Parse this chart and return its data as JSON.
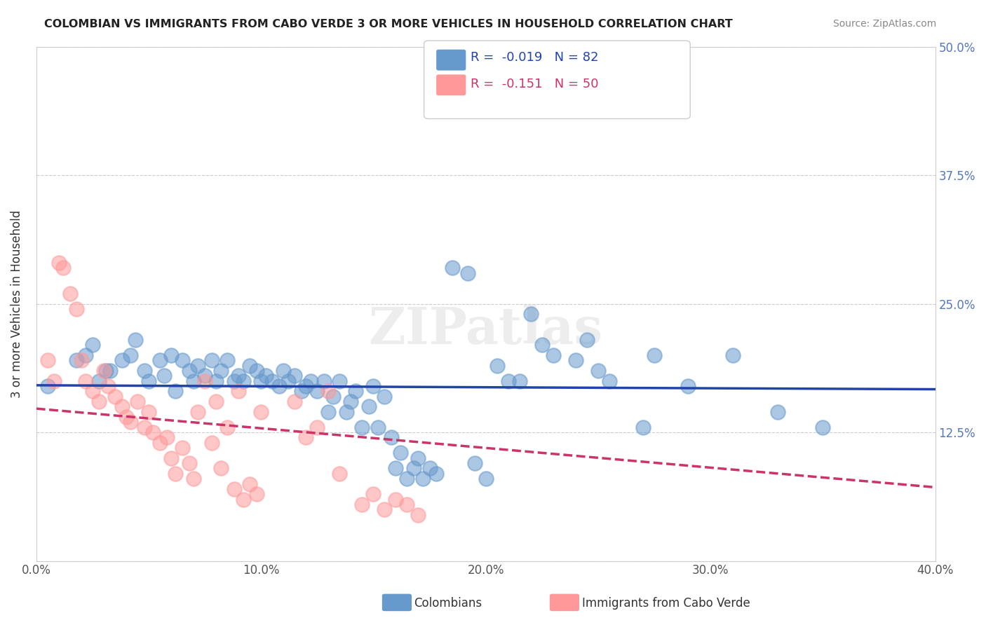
{
  "title": "COLOMBIAN VS IMMIGRANTS FROM CABO VERDE 3 OR MORE VEHICLES IN HOUSEHOLD CORRELATION CHART",
  "source": "Source: ZipAtlas.com",
  "xlabel": "",
  "ylabel": "3 or more Vehicles in Household",
  "xmin": 0.0,
  "xmax": 0.4,
  "ymin": 0.0,
  "ymax": 0.5,
  "xticks": [
    0.0,
    0.1,
    0.2,
    0.3,
    0.4
  ],
  "yticks": [
    0.0,
    0.125,
    0.25,
    0.375,
    0.5
  ],
  "ytick_labels": [
    "",
    "12.5%",
    "25.0%",
    "37.5%",
    "50.0%"
  ],
  "xtick_labels": [
    "0.0%",
    "10.0%",
    "20.0%",
    "30.0%",
    "40.0%"
  ],
  "blue_R": -0.019,
  "blue_N": 82,
  "pink_R": -0.151,
  "pink_N": 50,
  "blue_color": "#6699CC",
  "pink_color": "#FF9999",
  "blue_line_color": "#2244AA",
  "pink_line_color": "#CC3366",
  "legend_blue_label": "Colombians",
  "legend_pink_label": "Immigrants from Cabo Verde",
  "watermark": "ZIPatlas",
  "blue_x": [
    0.031,
    0.005,
    0.018,
    0.022,
    0.025,
    0.028,
    0.033,
    0.038,
    0.042,
    0.044,
    0.048,
    0.05,
    0.055,
    0.057,
    0.06,
    0.062,
    0.065,
    0.068,
    0.07,
    0.072,
    0.075,
    0.078,
    0.08,
    0.082,
    0.085,
    0.088,
    0.09,
    0.092,
    0.095,
    0.098,
    0.1,
    0.102,
    0.105,
    0.108,
    0.11,
    0.112,
    0.115,
    0.118,
    0.12,
    0.122,
    0.125,
    0.128,
    0.13,
    0.132,
    0.135,
    0.138,
    0.14,
    0.142,
    0.145,
    0.148,
    0.15,
    0.152,
    0.155,
    0.158,
    0.16,
    0.162,
    0.165,
    0.168,
    0.17,
    0.172,
    0.175,
    0.178,
    0.195,
    0.2,
    0.21,
    0.22,
    0.225,
    0.23,
    0.24,
    0.25,
    0.27,
    0.29,
    0.31,
    0.33,
    0.35,
    0.185,
    0.192,
    0.205,
    0.215,
    0.245,
    0.255,
    0.275
  ],
  "blue_y": [
    0.185,
    0.17,
    0.195,
    0.2,
    0.21,
    0.175,
    0.185,
    0.195,
    0.2,
    0.215,
    0.185,
    0.175,
    0.195,
    0.18,
    0.2,
    0.165,
    0.195,
    0.185,
    0.175,
    0.19,
    0.18,
    0.195,
    0.175,
    0.185,
    0.195,
    0.175,
    0.18,
    0.175,
    0.19,
    0.185,
    0.175,
    0.18,
    0.175,
    0.17,
    0.185,
    0.175,
    0.18,
    0.165,
    0.17,
    0.175,
    0.165,
    0.175,
    0.145,
    0.16,
    0.175,
    0.145,
    0.155,
    0.165,
    0.13,
    0.15,
    0.17,
    0.13,
    0.16,
    0.12,
    0.09,
    0.105,
    0.08,
    0.09,
    0.1,
    0.08,
    0.09,
    0.085,
    0.095,
    0.08,
    0.175,
    0.24,
    0.21,
    0.2,
    0.195,
    0.185,
    0.13,
    0.17,
    0.2,
    0.145,
    0.13,
    0.285,
    0.28,
    0.19,
    0.175,
    0.215,
    0.175,
    0.2
  ],
  "pink_x": [
    0.005,
    0.008,
    0.01,
    0.012,
    0.015,
    0.018,
    0.02,
    0.022,
    0.025,
    0.028,
    0.03,
    0.032,
    0.035,
    0.038,
    0.04,
    0.042,
    0.045,
    0.048,
    0.05,
    0.052,
    0.055,
    0.058,
    0.06,
    0.062,
    0.065,
    0.068,
    0.07,
    0.072,
    0.075,
    0.078,
    0.08,
    0.082,
    0.085,
    0.088,
    0.09,
    0.092,
    0.095,
    0.098,
    0.1,
    0.115,
    0.12,
    0.125,
    0.13,
    0.135,
    0.145,
    0.15,
    0.155,
    0.16,
    0.165,
    0.17
  ],
  "pink_y": [
    0.195,
    0.175,
    0.29,
    0.285,
    0.26,
    0.245,
    0.195,
    0.175,
    0.165,
    0.155,
    0.185,
    0.17,
    0.16,
    0.15,
    0.14,
    0.135,
    0.155,
    0.13,
    0.145,
    0.125,
    0.115,
    0.12,
    0.1,
    0.085,
    0.11,
    0.095,
    0.08,
    0.145,
    0.175,
    0.115,
    0.155,
    0.09,
    0.13,
    0.07,
    0.165,
    0.06,
    0.075,
    0.065,
    0.145,
    0.155,
    0.12,
    0.13,
    0.165,
    0.085,
    0.055,
    0.065,
    0.05,
    0.06,
    0.055,
    0.045
  ]
}
